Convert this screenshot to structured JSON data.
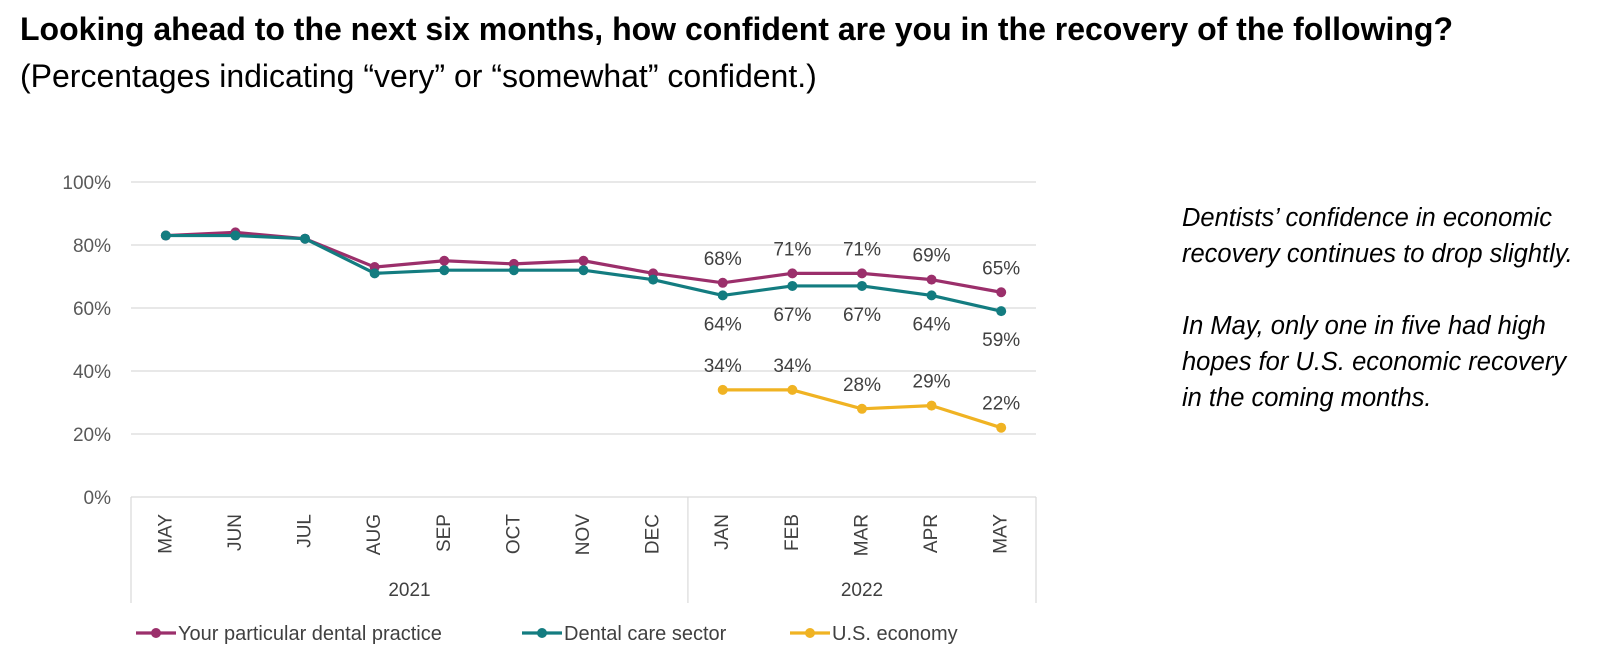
{
  "header": {
    "title_bold": "Looking ahead to the next six months, how confident are you in the recovery of the following?",
    "title_rest": "(Percentages indicating “very” or “somewhat” confident.)"
  },
  "side_note": {
    "paragraph1": "Dentists’ confidence in economic recovery continues to drop slightly.",
    "paragraph2": "In May, only one in five had high hopes for U.S. economic recovery in the coming months."
  },
  "chart_data": {
    "type": "line",
    "categories": [
      "MAY",
      "JUN",
      "JUL",
      "AUG",
      "SEP",
      "OCT",
      "NOV",
      "DEC",
      "JAN",
      "FEB",
      "MAR",
      "APR",
      "MAY"
    ],
    "groups": [
      {
        "label": "2021",
        "start": 0,
        "end": 7
      },
      {
        "label": "2022",
        "start": 8,
        "end": 12
      }
    ],
    "yticks": [
      "0%",
      "20%",
      "40%",
      "60%",
      "80%",
      "100%"
    ],
    "ylim": [
      0,
      100
    ],
    "grid": true,
    "legend_position": "bottom",
    "series": [
      {
        "name": "Your particular dental practice",
        "color": "#9b2f6b",
        "values": [
          83,
          84,
          82,
          73,
          75,
          74,
          75,
          71,
          68,
          71,
          71,
          69,
          65
        ],
        "labels": [
          "",
          "",
          "",
          "",
          "",
          "",
          "",
          "",
          "68%",
          "71%",
          "71%",
          "69%",
          "65%"
        ],
        "label_side": "above"
      },
      {
        "name": "Dental care sector",
        "color": "#137c80",
        "values": [
          83,
          83,
          82,
          71,
          72,
          72,
          72,
          69,
          64,
          67,
          67,
          64,
          59
        ],
        "labels": [
          "",
          "",
          "",
          "",
          "",
          "",
          "",
          "",
          "64%",
          "67%",
          "67%",
          "64%",
          "59%"
        ],
        "label_side": "below"
      },
      {
        "name": "U.S. economy",
        "color": "#f0b323",
        "values": [
          null,
          null,
          null,
          null,
          null,
          null,
          null,
          null,
          34,
          34,
          28,
          29,
          22
        ],
        "labels": [
          "",
          "",
          "",
          "",
          "",
          "",
          "",
          "",
          "34%",
          "34%",
          "28%",
          "29%",
          "22%"
        ],
        "label_side": "above"
      }
    ]
  }
}
